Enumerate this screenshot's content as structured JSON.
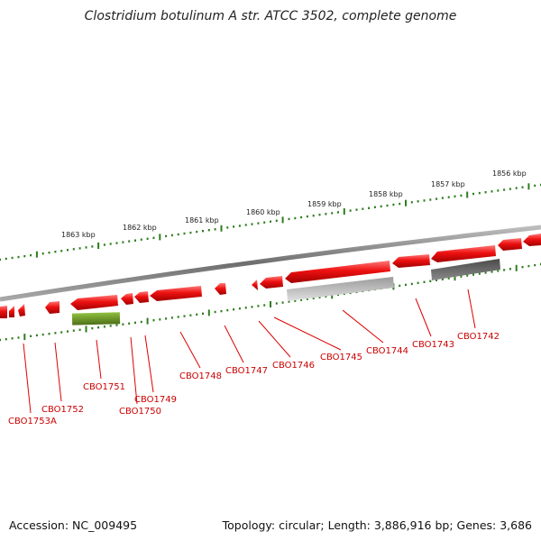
{
  "title": "Clostridium botulinum A str. ATCC 3502, complete genome",
  "footer": {
    "accession": "Accession: NC_009495",
    "summary": "Topology: circular; Length: 3,886,916 bp; Genes: 3,686"
  },
  "colors": {
    "backbone": "#8a8a8a",
    "gene_red": "#ee1111",
    "gene_green": "#6f9a2a",
    "gene_gray_light": "#c8c8c8",
    "gene_gray_dark": "#666666",
    "tick": "#2e7d1e",
    "label": "#cc0000"
  },
  "scale_labels": [
    "1863 kbp",
    "1862 kbp",
    "1861 kbp",
    "1860 kbp",
    "1859 kbp",
    "1858 kbp",
    "1857 kbp",
    "1856 kbp"
  ],
  "gene_labels": [
    "CBO1753A",
    "CBO1752",
    "CBO1751",
    "CBO1750",
    "CBO1749",
    "CBO1748",
    "CBO1747",
    "CBO1746",
    "CBO1745",
    "CBO1744",
    "CBO1743",
    "CBO1742"
  ]
}
